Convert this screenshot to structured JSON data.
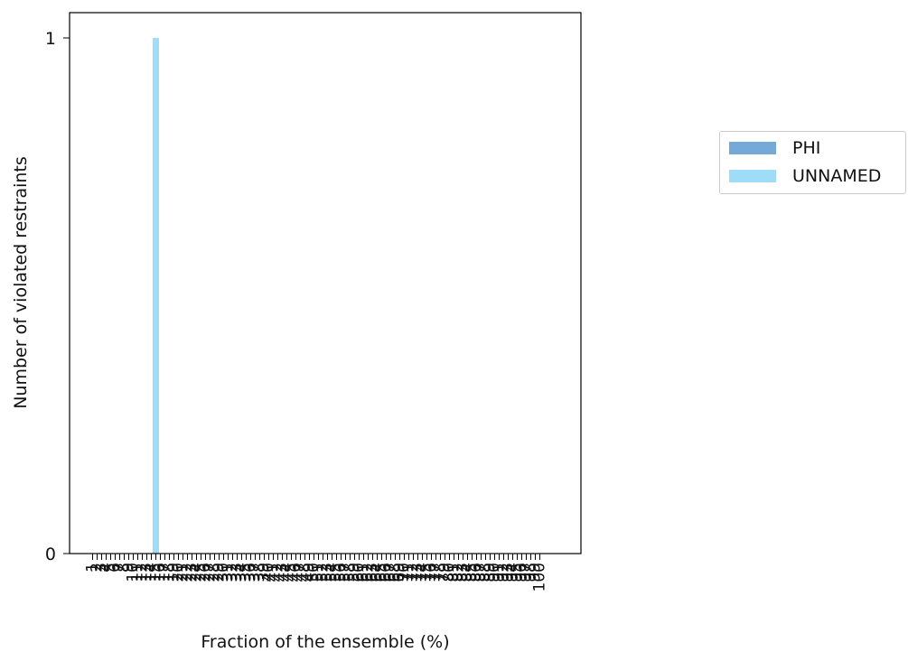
{
  "chart_data": {
    "type": "bar",
    "title": "",
    "xlabel": "Fraction of the ensemble (%)",
    "ylabel": "Number of violated restraints",
    "ylim": [
      0,
      1
    ],
    "yticks": [
      "0",
      "1"
    ],
    "categories": [
      "1",
      "2",
      "3",
      "4",
      "5",
      "6",
      "7",
      "8",
      "9",
      "10",
      "11",
      "12",
      "13",
      "14",
      "15",
      "16",
      "17",
      "18",
      "19",
      "20",
      "21",
      "22",
      "23",
      "24",
      "25",
      "26",
      "27",
      "28",
      "29",
      "30",
      "31",
      "32",
      "33",
      "34",
      "35",
      "36",
      "37",
      "38",
      "39",
      "40",
      "41",
      "42",
      "43",
      "44",
      "45",
      "46",
      "47",
      "48",
      "49",
      "50",
      "51",
      "52",
      "53",
      "54",
      "55",
      "56",
      "57",
      "58",
      "59",
      "60",
      "61",
      "62",
      "63",
      "64",
      "65",
      "66",
      "67",
      "68",
      "69",
      "70",
      "71",
      "72",
      "73",
      "74",
      "75",
      "76",
      "77",
      "78",
      "79",
      "80",
      "81",
      "82",
      "83",
      "84",
      "85",
      "86",
      "87",
      "88",
      "89",
      "90",
      "91",
      "92",
      "93",
      "94",
      "95",
      "96",
      "97",
      "98",
      "99",
      "100"
    ],
    "series": [
      {
        "name": "PHI",
        "color": "#74a9d8",
        "values": [
          0,
          0,
          0,
          0,
          0,
          0,
          0,
          0,
          0,
          0,
          0,
          0,
          0,
          0,
          0,
          0,
          0,
          0,
          0,
          0,
          0,
          0,
          0,
          0,
          0,
          0,
          0,
          0,
          0,
          0,
          0,
          0,
          0,
          0,
          0,
          0,
          0,
          0,
          0,
          0,
          0,
          0,
          0,
          0,
          0,
          0,
          0,
          0,
          0,
          0,
          0,
          0,
          0,
          0,
          0,
          0,
          0,
          0,
          0,
          0,
          0,
          0,
          0,
          0,
          0,
          0,
          0,
          0,
          0,
          0,
          0,
          0,
          0,
          0,
          0,
          0,
          0,
          0,
          0,
          0,
          0,
          0,
          0,
          0,
          0,
          0,
          0,
          0,
          0,
          0,
          0,
          0,
          0,
          0,
          0,
          0,
          0,
          0,
          0,
          0
        ]
      },
      {
        "name": "UNNAMED",
        "color": "#9fdcf8",
        "values": [
          0,
          0,
          0,
          0,
          0,
          0,
          0,
          0,
          0,
          0,
          0,
          0,
          0,
          0,
          1,
          0,
          0,
          0,
          0,
          0,
          0,
          0,
          0,
          0,
          0,
          0,
          0,
          0,
          0,
          0,
          0,
          0,
          0,
          0,
          0,
          0,
          0,
          0,
          0,
          0,
          0,
          0,
          0,
          0,
          0,
          0,
          0,
          0,
          0,
          0,
          0,
          0,
          0,
          0,
          0,
          0,
          0,
          0,
          0,
          0,
          0,
          0,
          0,
          0,
          0,
          0,
          0,
          0,
          0,
          0,
          0,
          0,
          0,
          0,
          0,
          0,
          0,
          0,
          0,
          0,
          0,
          0,
          0,
          0,
          0,
          0,
          0,
          0,
          0,
          0,
          0,
          0,
          0,
          0,
          0,
          0,
          0,
          0,
          0,
          0
        ]
      }
    ],
    "grid": false,
    "legend": "right"
  }
}
